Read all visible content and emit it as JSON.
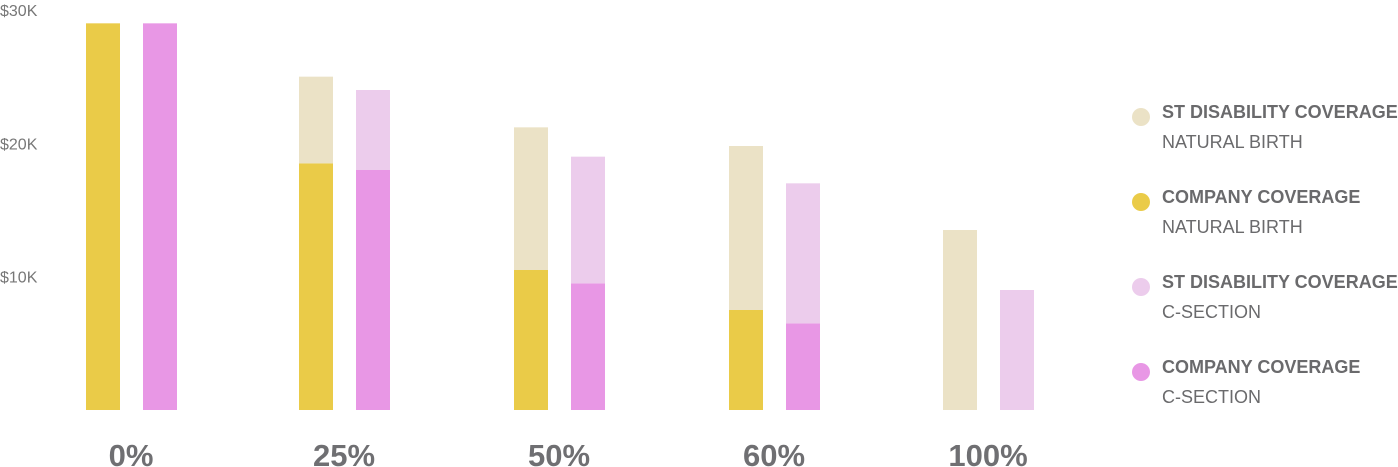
{
  "chart_data": {
    "type": "bar",
    "stacked": true,
    "grouped": true,
    "y_ticks": [
      "$10K",
      "$20K",
      "$30K"
    ],
    "ylim": [
      0,
      30000
    ],
    "categories": [
      "0%",
      "25%",
      "50%",
      "60%",
      "100%"
    ],
    "groups": [
      {
        "name": "Natural Birth",
        "series": [
          {
            "name": "COMPANY COVERAGE",
            "values": [
              29000,
              18500,
              10500,
              7500,
              0
            ],
            "color": "#eacb48"
          },
          {
            "name": "ST DISABILITY COVERAGE",
            "values": [
              0,
              6500,
              10700,
              12300,
              13500
            ],
            "color": "#ebe2c6"
          }
        ]
      },
      {
        "name": "C-Section",
        "series": [
          {
            "name": "COMPANY COVERAGE",
            "values": [
              29000,
              18000,
              9500,
              6500,
              0
            ],
            "color": "#e897e5"
          },
          {
            "name": "ST DISABILITY COVERAGE",
            "values": [
              0,
              6000,
              9500,
              10500,
              9000
            ],
            "color": "#ecccec"
          }
        ]
      }
    ],
    "legend": {
      "position": "right",
      "items": [
        {
          "title": "ST DISABILITY COVERAGE",
          "subtitle": "NATURAL BIRTH",
          "color": "#ebe2c6"
        },
        {
          "title": "COMPANY COVERAGE",
          "subtitle": "NATURAL BIRTH",
          "color": "#eacb48"
        },
        {
          "title": "ST DISABILITY COVERAGE",
          "subtitle": "C-SECTION",
          "color": "#ecccec"
        },
        {
          "title": "COMPANY COVERAGE",
          "subtitle": "C-SECTION",
          "color": "#e897e5"
        }
      ]
    },
    "grid": false
  }
}
